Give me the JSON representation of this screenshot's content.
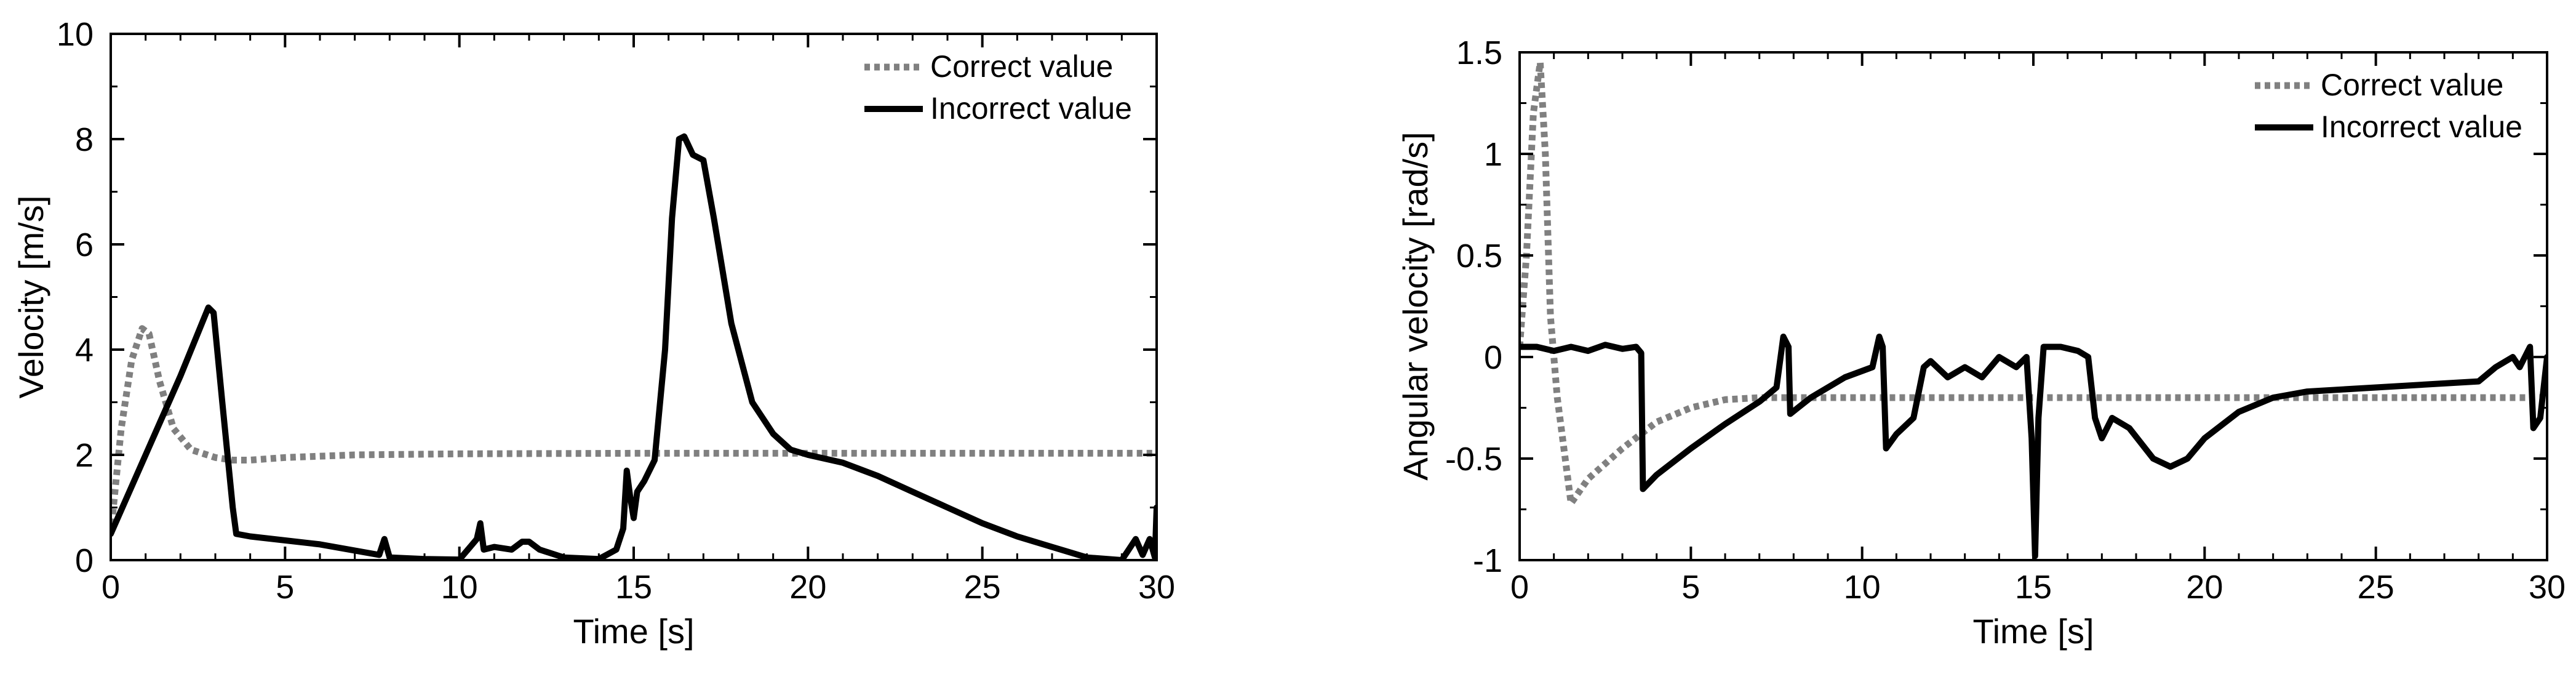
{
  "chart_data": [
    {
      "type": "line",
      "title": "",
      "xlabel": "Time [s]",
      "ylabel": "Velocity [m/s]",
      "xlim": [
        0,
        30
      ],
      "ylim": [
        0,
        10
      ],
      "xticks": [
        0,
        5,
        10,
        15,
        20,
        25,
        30
      ],
      "yticks": [
        0,
        2,
        4,
        6,
        8,
        10
      ],
      "xtick_labels": [
        "0",
        "5",
        "10",
        "15",
        "20",
        "25",
        "30"
      ],
      "ytick_labels": [
        "0",
        "2",
        "4",
        "6",
        "8",
        "10"
      ],
      "grid": false,
      "legend_position": "top-right",
      "series": [
        {
          "name": "Correct value",
          "style": "dotted",
          "color": "#808080",
          "points": [
            [
              0,
              0.5
            ],
            [
              0.3,
              2.5
            ],
            [
              0.6,
              3.8
            ],
            [
              0.9,
              4.4
            ],
            [
              1.1,
              4.3
            ],
            [
              1.4,
              3.4
            ],
            [
              1.8,
              2.5
            ],
            [
              2.3,
              2.1
            ],
            [
              3,
              1.95
            ],
            [
              3.5,
              1.9
            ],
            [
              4,
              1.9
            ],
            [
              5,
              1.95
            ],
            [
              7,
              2.0
            ],
            [
              10,
              2.02
            ],
            [
              15,
              2.03
            ],
            [
              20,
              2.03
            ],
            [
              25,
              2.03
            ],
            [
              30,
              2.03
            ]
          ]
        },
        {
          "name": "Incorrect value",
          "style": "solid",
          "color": "#000000",
          "points": [
            [
              0,
              0.5
            ],
            [
              1,
              2.0
            ],
            [
              2,
              3.5
            ],
            [
              2.8,
              4.8
            ],
            [
              2.95,
              4.7
            ],
            [
              3.2,
              3.0
            ],
            [
              3.5,
              1.0
            ],
            [
              3.6,
              0.5
            ],
            [
              4,
              0.45
            ],
            [
              6,
              0.3
            ],
            [
              7.7,
              0.1
            ],
            [
              7.85,
              0.4
            ],
            [
              8,
              0.05
            ],
            [
              9,
              0.02
            ],
            [
              10,
              0.01
            ],
            [
              10.5,
              0.4
            ],
            [
              10.6,
              0.7
            ],
            [
              10.7,
              0.2
            ],
            [
              11,
              0.25
            ],
            [
              11.5,
              0.2
            ],
            [
              11.8,
              0.35
            ],
            [
              12,
              0.35
            ],
            [
              12.3,
              0.2
            ],
            [
              13,
              0.05
            ],
            [
              14,
              0.02
            ],
            [
              14.5,
              0.2
            ],
            [
              14.7,
              0.6
            ],
            [
              14.8,
              1.7
            ],
            [
              14.9,
              1.2
            ],
            [
              15,
              0.8
            ],
            [
              15.1,
              1.3
            ],
            [
              15.3,
              1.5
            ],
            [
              15.6,
              1.9
            ],
            [
              15.9,
              4.0
            ],
            [
              16.1,
              6.5
            ],
            [
              16.3,
              8.0
            ],
            [
              16.45,
              8.05
            ],
            [
              16.7,
              7.7
            ],
            [
              17,
              7.6
            ],
            [
              17.3,
              6.5
            ],
            [
              17.8,
              4.5
            ],
            [
              18.4,
              3.0
            ],
            [
              19,
              2.4
            ],
            [
              19.5,
              2.1
            ],
            [
              20,
              2.0
            ],
            [
              21,
              1.85
            ],
            [
              22,
              1.6
            ],
            [
              23,
              1.3
            ],
            [
              24,
              1.0
            ],
            [
              25,
              0.7
            ],
            [
              26,
              0.45
            ],
            [
              27,
              0.25
            ],
            [
              28,
              0.05
            ],
            [
              29,
              0.0
            ],
            [
              29.4,
              0.4
            ],
            [
              29.6,
              0.1
            ],
            [
              29.8,
              0.4
            ],
            [
              29.95,
              0.05
            ],
            [
              30,
              1.0
            ]
          ]
        }
      ]
    },
    {
      "type": "line",
      "title": "",
      "xlabel": "Time [s]",
      "ylabel": "Angular velocity [rad/s]",
      "xlim": [
        0,
        30
      ],
      "ylim": [
        -1,
        1.5
      ],
      "xticks": [
        0,
        5,
        10,
        15,
        20,
        25,
        30
      ],
      "yticks": [
        -1,
        -0.5,
        0,
        0.5,
        1,
        1.5
      ],
      "xtick_labels": [
        "0",
        "5",
        "10",
        "15",
        "20",
        "25",
        "30"
      ],
      "ytick_labels": [
        "-1",
        "-0.5",
        "0",
        "0.5",
        "1",
        "1.5"
      ],
      "grid": false,
      "legend_position": "top-right",
      "series": [
        {
          "name": "Correct value",
          "style": "dotted",
          "color": "#808080",
          "points": [
            [
              0,
              0.05
            ],
            [
              0.2,
              0.5
            ],
            [
              0.4,
              1.2
            ],
            [
              0.6,
              1.45
            ],
            [
              0.75,
              1.0
            ],
            [
              0.9,
              0.2
            ],
            [
              1.1,
              -0.2
            ],
            [
              1.5,
              -0.72
            ],
            [
              2,
              -0.6
            ],
            [
              3,
              -0.45
            ],
            [
              4,
              -0.32
            ],
            [
              5,
              -0.25
            ],
            [
              6,
              -0.21
            ],
            [
              7,
              -0.2
            ],
            [
              10,
              -0.2
            ],
            [
              15,
              -0.2
            ],
            [
              20,
              -0.2
            ],
            [
              25,
              -0.2
            ],
            [
              30,
              -0.2
            ]
          ]
        },
        {
          "name": "Incorrect value",
          "style": "solid",
          "color": "#000000",
          "points": [
            [
              0,
              0.05
            ],
            [
              0.5,
              0.05
            ],
            [
              1,
              0.03
            ],
            [
              1.5,
              0.05
            ],
            [
              2,
              0.03
            ],
            [
              2.5,
              0.06
            ],
            [
              3,
              0.04
            ],
            [
              3.4,
              0.05
            ],
            [
              3.55,
              0.02
            ],
            [
              3.6,
              -0.65
            ],
            [
              4,
              -0.58
            ],
            [
              5,
              -0.45
            ],
            [
              6,
              -0.33
            ],
            [
              7,
              -0.22
            ],
            [
              7.5,
              -0.15
            ],
            [
              7.7,
              0.1
            ],
            [
              7.85,
              0.05
            ],
            [
              7.9,
              -0.28
            ],
            [
              8.5,
              -0.2
            ],
            [
              9.5,
              -0.1
            ],
            [
              10.3,
              -0.05
            ],
            [
              10.5,
              0.1
            ],
            [
              10.6,
              0.05
            ],
            [
              10.7,
              -0.45
            ],
            [
              11,
              -0.38
            ],
            [
              11.5,
              -0.3
            ],
            [
              11.8,
              -0.05
            ],
            [
              12,
              -0.02
            ],
            [
              12.5,
              -0.1
            ],
            [
              13,
              -0.05
            ],
            [
              13.5,
              -0.1
            ],
            [
              14,
              0.0
            ],
            [
              14.5,
              -0.05
            ],
            [
              14.8,
              0.0
            ],
            [
              14.95,
              -0.4
            ],
            [
              15.05,
              -0.98
            ],
            [
              15.15,
              -0.3
            ],
            [
              15.3,
              0.05
            ],
            [
              15.8,
              0.05
            ],
            [
              16.3,
              0.03
            ],
            [
              16.6,
              0.0
            ],
            [
              16.8,
              -0.3
            ],
            [
              17,
              -0.4
            ],
            [
              17.3,
              -0.3
            ],
            [
              17.8,
              -0.35
            ],
            [
              18.5,
              -0.5
            ],
            [
              19,
              -0.54
            ],
            [
              19.5,
              -0.5
            ],
            [
              20,
              -0.4
            ],
            [
              21,
              -0.27
            ],
            [
              22,
              -0.2
            ],
            [
              23,
              -0.17
            ],
            [
              25,
              -0.15
            ],
            [
              27,
              -0.13
            ],
            [
              28,
              -0.12
            ],
            [
              28.5,
              -0.05
            ],
            [
              29,
              0.0
            ],
            [
              29.2,
              -0.05
            ],
            [
              29.5,
              0.05
            ],
            [
              29.6,
              -0.35
            ],
            [
              29.8,
              -0.3
            ],
            [
              30,
              0.0
            ]
          ]
        }
      ]
    }
  ]
}
